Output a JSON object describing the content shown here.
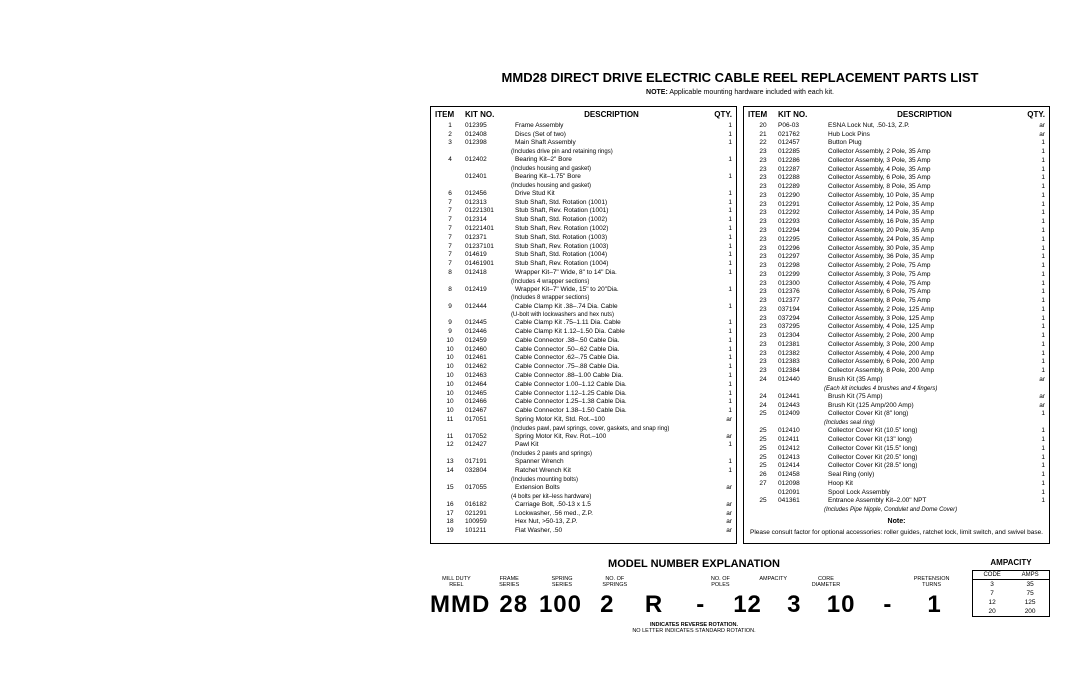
{
  "title": "MMD28 DIRECT DRIVE ELECTRIC CABLE REEL REPLACEMENT PARTS LIST",
  "note_prefix": "NOTE:",
  "note_text": "Applicable mounting hardware included with each kit.",
  "headers": {
    "item": "ITEM",
    "kit": "KIT NO.",
    "desc": "DESCRIPTION",
    "qty": "QTY."
  },
  "left": [
    {
      "i": "1",
      "k": "012395",
      "d": "Frame Assembly",
      "q": "1"
    },
    {
      "i": "2",
      "k": "012408",
      "d": "Discs (Set of two)",
      "q": "1"
    },
    {
      "i": "3",
      "k": "012398",
      "d": "Main Shaft Assembly",
      "q": "1"
    },
    {
      "sub": "(Includes drive pin and retaining rings)"
    },
    {
      "i": "4",
      "k": "012402",
      "d": "Bearing Kit–2\" Bore",
      "q": "1"
    },
    {
      "sub": "(Includes housing and gasket)"
    },
    {
      "i": "",
      "k": "012401",
      "d": "Bearing Kit–1.75\" Bore",
      "q": "1"
    },
    {
      "sub": "(Includes housing and gasket)"
    },
    {
      "i": "6",
      "k": "012456",
      "d": "Drive Stud Kit",
      "q": "1"
    },
    {
      "i": "7",
      "k": "012313",
      "d": "Stub Shaft, Std. Rotation (1001)",
      "q": "1"
    },
    {
      "i": "7",
      "k": "01221301",
      "d": "Stub Shaft, Rev. Rotation (1001)",
      "q": "1"
    },
    {
      "i": "7",
      "k": "012314",
      "d": "Stub Shaft, Std. Rotation (1002)",
      "q": "1"
    },
    {
      "i": "7",
      "k": "01221401",
      "d": "Stub Shaft, Rev. Rotation (1002)",
      "q": "1"
    },
    {
      "i": "7",
      "k": "012371",
      "d": "Stub Shaft, Std. Rotation (1003)",
      "q": "1"
    },
    {
      "i": "7",
      "k": "01237101",
      "d": "Stub Shaft, Rev. Rotation (1003)",
      "q": "1"
    },
    {
      "i": "7",
      "k": "014619",
      "d": "Stub Shaft, Std. Rotation (1004)",
      "q": "1"
    },
    {
      "i": "7",
      "k": "01461901",
      "d": "Stub Shaft, Rev. Rotation (1004)",
      "q": "1"
    },
    {
      "i": "8",
      "k": "012418",
      "d": "Wrapper Kit–7\" Wide, 8\" to 14\" Dia.",
      "q": "1"
    },
    {
      "sub": "(Includes 4 wrapper sections)"
    },
    {
      "i": "8",
      "k": "012419",
      "d": "Wrapper Kit–7\" Wide, 15\" to 20\"Dia.",
      "q": "1"
    },
    {
      "sub": "(Includes 8 wrapper sections)"
    },
    {
      "i": "9",
      "k": "012444",
      "d": "Cable Clamp Kit .38–.74 Dia. Cable",
      "q": "1"
    },
    {
      "sub": "(U-bolt with lockwashers and hex nuts)"
    },
    {
      "i": "9",
      "k": "012445",
      "d": "Cable Clamp Kit .75–1.11 Dia. Cable",
      "q": "1"
    },
    {
      "i": "9",
      "k": "012446",
      "d": "Cable Clamp Kit 1.12–1.50 Dia. Cable",
      "q": "1"
    },
    {
      "i": "10",
      "k": "012459",
      "d": "Cable Connector .38–.50 Cable Dia.",
      "q": "1"
    },
    {
      "i": "10",
      "k": "012460",
      "d": "Cable Connector .50–.62 Cable Dia.",
      "q": "1"
    },
    {
      "i": "10",
      "k": "012461",
      "d": "Cable Connector .62–.75 Cable Dia.",
      "q": "1"
    },
    {
      "i": "10",
      "k": "012462",
      "d": "Cable Connector .75–.88 Cable Dia.",
      "q": "1"
    },
    {
      "i": "10",
      "k": "012463",
      "d": "Cable Connector .88–1.00 Cable Dia.",
      "q": "1"
    },
    {
      "i": "10",
      "k": "012464",
      "d": "Cable Connector 1.00–1.12 Cable Dia.",
      "q": "1"
    },
    {
      "i": "10",
      "k": "012465",
      "d": "Cable Connector 1.12–1.25 Cable Dia.",
      "q": "1"
    },
    {
      "i": "10",
      "k": "012466",
      "d": "Cable Connector 1.25–1.38 Cable Dia.",
      "q": "1"
    },
    {
      "i": "10",
      "k": "012467",
      "d": "Cable Connector 1.38–1.50 Cable Dia.",
      "q": "1"
    },
    {
      "i": "11",
      "k": "017051",
      "d": "Spring Motor Kit, Std. Rot.–100",
      "q": "ar"
    },
    {
      "sub": "(Includes pawl, pawl springs, cover, gaskets, and snap ring)"
    },
    {
      "i": "11",
      "k": "017052",
      "d": "Spring Motor Kit, Rev. Rot.–100",
      "q": "ar"
    },
    {
      "i": "12",
      "k": "012427",
      "d": "Pawl Kit",
      "q": "1"
    },
    {
      "sub": "(Includes 2 pawls and springs)"
    },
    {
      "i": "13",
      "k": "017191",
      "d": "Spanner Wrench",
      "q": "1"
    },
    {
      "i": "14",
      "k": "032804",
      "d": "Ratchet Wrench Kit",
      "q": "1"
    },
    {
      "sub": "(Includes mounting bolts)"
    },
    {
      "i": "15",
      "k": "017055",
      "d": "Extension Bolts",
      "q": "ar"
    },
    {
      "sub": "(4 bolts per kit–less hardware)"
    },
    {
      "i": "16",
      "k": "016182",
      "d": "Carriage Bolt, .50-13 x 1.5",
      "q": "ar"
    },
    {
      "i": "17",
      "k": "021291",
      "d": "Lockwasher, .56 med., Z.P.",
      "q": "ar"
    },
    {
      "i": "18",
      "k": "100959",
      "d": "Hex Nut, >50-13, Z.P.",
      "q": "ar"
    },
    {
      "i": "19",
      "k": "101211",
      "d": "Flat Washer, .50",
      "q": "ar"
    }
  ],
  "right": [
    {
      "i": "20",
      "k": "P06-03",
      "d": "ESNA Lock Nut, .50-13, Z.P.",
      "q": "ar"
    },
    {
      "i": "21",
      "k": "021762",
      "d": "Hub Lock Pins",
      "q": "ar"
    },
    {
      "i": "22",
      "k": "012457",
      "d": "Button Plug",
      "q": "1"
    },
    {
      "i": "23",
      "k": "012285",
      "d": "Collector Assembly, 2 Pole, 35 Amp",
      "q": "1"
    },
    {
      "i": "23",
      "k": "012286",
      "d": "Collector Assembly, 3 Pole, 35 Amp",
      "q": "1"
    },
    {
      "i": "23",
      "k": "012287",
      "d": "Collector Assembly, 4 Pole, 35 Amp",
      "q": "1"
    },
    {
      "i": "23",
      "k": "012288",
      "d": "Collector Assembly, 6 Pole, 35 Amp",
      "q": "1"
    },
    {
      "i": "23",
      "k": "012289",
      "d": "Collector Assembly, 8 Pole, 35 Amp",
      "q": "1"
    },
    {
      "i": "23",
      "k": "012290",
      "d": "Collector Assembly, 10 Pole, 35 Amp",
      "q": "1"
    },
    {
      "i": "23",
      "k": "012291",
      "d": "Collector Assembly, 12 Pole, 35 Amp",
      "q": "1"
    },
    {
      "i": "23",
      "k": "012292",
      "d": "Collector Assembly, 14 Pole, 35 Amp",
      "q": "1"
    },
    {
      "i": "23",
      "k": "012293",
      "d": "Collector Assembly, 16 Pole, 35 Amp",
      "q": "1"
    },
    {
      "i": "23",
      "k": "012294",
      "d": "Collector Assembly, 20 Pole, 35 Amp",
      "q": "1"
    },
    {
      "i": "23",
      "k": "012295",
      "d": "Collector Assembly, 24 Pole, 35 Amp",
      "q": "1"
    },
    {
      "i": "23",
      "k": "012296",
      "d": "Collector Assembly, 30 Pole, 35 Amp",
      "q": "1"
    },
    {
      "i": "23",
      "k": "012297",
      "d": "Collector Assembly, 36 Pole, 35 Amp",
      "q": "1"
    },
    {
      "i": "23",
      "k": "012298",
      "d": "Collector Assembly, 2 Pole, 75 Amp",
      "q": "1"
    },
    {
      "i": "23",
      "k": "012299",
      "d": "Collector Assembly, 3 Pole, 75 Amp",
      "q": "1"
    },
    {
      "i": "23",
      "k": "012300",
      "d": "Collector Assembly, 4 Pole, 75 Amp",
      "q": "1"
    },
    {
      "i": "23",
      "k": "012376",
      "d": "Collector Assembly, 6 Pole, 75 Amp",
      "q": "1"
    },
    {
      "i": "23",
      "k": "012377",
      "d": "Collector Assembly, 8 Pole, 75 Amp",
      "q": "1"
    },
    {
      "i": "23",
      "k": "037194",
      "d": "Collector Assembly, 2 Pole, 125 Amp",
      "q": "1"
    },
    {
      "i": "23",
      "k": "037294",
      "d": "Collector Assembly, 3 Pole, 125 Amp",
      "q": "1"
    },
    {
      "i": "23",
      "k": "037295",
      "d": "Collector Assembly, 4 Pole, 125 Amp",
      "q": "1"
    },
    {
      "i": "23",
      "k": "012304",
      "d": "Collector Assembly, 2 Pole, 200 Amp",
      "q": "1"
    },
    {
      "i": "23",
      "k": "012381",
      "d": "Collector Assembly, 3 Pole, 200 Amp",
      "q": "1"
    },
    {
      "i": "23",
      "k": "012382",
      "d": "Collector Assembly, 4 Pole, 200 Amp",
      "q": "1"
    },
    {
      "i": "23",
      "k": "012383",
      "d": "Collector Assembly, 6 Pole, 200 Amp",
      "q": "1"
    },
    {
      "i": "23",
      "k": "012384",
      "d": "Collector Assembly, 8 Pole, 200 Amp",
      "q": "1"
    },
    {
      "i": "24",
      "k": "012440",
      "d": "Brush Kit (35 Amp)",
      "q": "ar"
    },
    {
      "ital": "(Each kit includes 4 brushes and 4 fingers)"
    },
    {
      "i": "24",
      "k": "012441",
      "d": "Brush Kit (75 Amp)",
      "q": "ar"
    },
    {
      "i": "24",
      "k": "012443",
      "d": "Brush Kit (125 Amp/200 Amp)",
      "q": "ar"
    },
    {
      "i": "25",
      "k": "012409",
      "d": "Collector Cover Kit (8\" long)",
      "q": "1"
    },
    {
      "ital": "(Includes seal ring)"
    },
    {
      "i": "25",
      "k": "012410",
      "d": "Collector Cover Kit (10.5\" long)",
      "q": "1"
    },
    {
      "i": "25",
      "k": "012411",
      "d": "Collector Cover Kit (13\" long)",
      "q": "1"
    },
    {
      "i": "25",
      "k": "012412",
      "d": "Collector Cover Kit (15.5\" long)",
      "q": "1"
    },
    {
      "i": "25",
      "k": "012413",
      "d": "Collector Cover Kit (20.5\" long)",
      "q": "1"
    },
    {
      "i": "25",
      "k": "012414",
      "d": "Collector Cover Kit (28.5\" long)",
      "q": "1"
    },
    {
      "i": "26",
      "k": "012458",
      "d": "Seal Ring (only)",
      "q": "1"
    },
    {
      "i": "27",
      "k": "012098",
      "d": "Hoop Kit",
      "q": "1"
    },
    {
      "i": "",
      "k": "012091",
      "d": "Spool Lock Assembly",
      "q": "1"
    },
    {
      "i": "25",
      "k": "041361",
      "d": "Entrance Assembly Kit–2.00\" NPT",
      "q": "1"
    },
    {
      "ital": "(Includes Pipe Nipple, Condulet and Dome Cover)"
    }
  ],
  "right_note_hdr": "Note:",
  "right_note": "Please consult factor for optional accessories: roller guides, ratchet lock, limit switch, and swivel base.",
  "model_title": "MODEL NUMBER EXPLANATION",
  "model_labels": [
    "MILL DUTY\nREEL",
    "FRAME\nSERIES",
    "SPRING\nSERIES",
    "NO. OF\nSPRINGS",
    "",
    "NO. OF\nPOLES",
    "AMPACITY",
    "CORE\nDIAMETER",
    "",
    "PRETENSION\nTURNS"
  ],
  "model_code": [
    "MMD",
    "28",
    "100",
    "2",
    "R",
    "-",
    "12",
    "3",
    "10",
    "-",
    "1"
  ],
  "rot_note1": "INDICATES REVERSE ROTATION.",
  "rot_note2": "NO LETTER INDICATES STANDARD ROTATION.",
  "amp_title": "AMPACITY",
  "amp_headers": [
    "CODE",
    "AMPS"
  ],
  "amp_rows": [
    [
      "3",
      "35"
    ],
    [
      "7",
      "75"
    ],
    [
      "12",
      "125"
    ],
    [
      "20",
      "200"
    ]
  ]
}
